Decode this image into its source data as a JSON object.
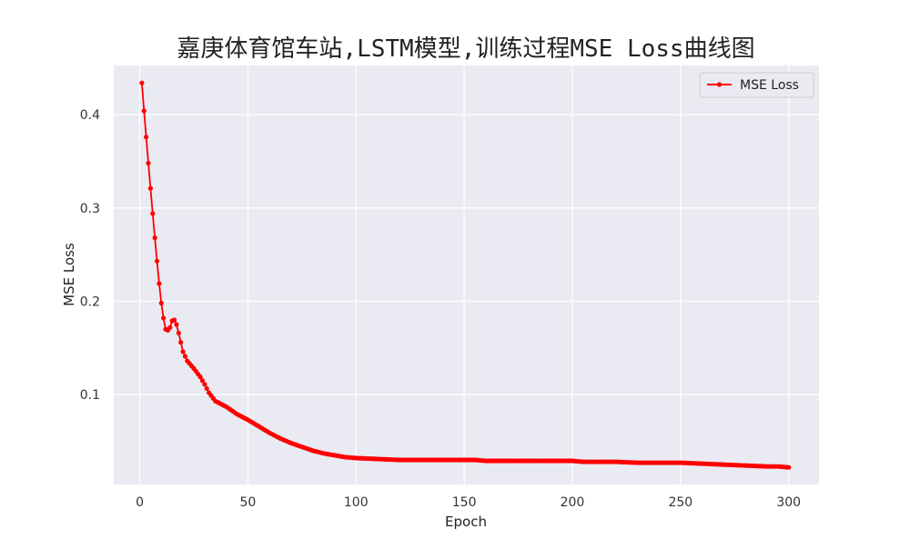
{
  "chart_data": {
    "type": "line",
    "title": "嘉庚体育馆车站,LSTM模型,训练过程MSE Loss曲线图",
    "xlabel": "Epoch",
    "ylabel": "MSE Loss",
    "xlim": [
      -12,
      314
    ],
    "ylim": [
      0.0037,
      0.4527
    ],
    "xticks": [
      0,
      50,
      100,
      150,
      200,
      250,
      300
    ],
    "yticks": [
      0.1,
      0.2,
      0.3,
      0.4
    ],
    "ytick_labels": [
      "0.1",
      "0.2",
      "0.3",
      "0.4"
    ],
    "grid": true,
    "legend_position": "top-right",
    "series": [
      {
        "name": "MSE Loss",
        "color": "#ff0000",
        "marker": "circle",
        "anchors": [
          [
            1,
            0.434
          ],
          [
            2,
            0.404
          ],
          [
            3,
            0.376
          ],
          [
            4,
            0.348
          ],
          [
            5,
            0.321
          ],
          [
            6,
            0.294
          ],
          [
            7,
            0.268
          ],
          [
            8,
            0.243
          ],
          [
            9,
            0.219
          ],
          [
            10,
            0.198
          ],
          [
            11,
            0.182
          ],
          [
            12,
            0.17
          ],
          [
            13,
            0.169
          ],
          [
            14,
            0.172
          ],
          [
            15,
            0.179
          ],
          [
            16,
            0.18
          ],
          [
            17,
            0.175
          ],
          [
            18,
            0.166
          ],
          [
            19,
            0.156
          ],
          [
            20,
            0.146
          ],
          [
            22,
            0.136
          ],
          [
            25,
            0.128
          ],
          [
            28,
            0.119
          ],
          [
            30,
            0.111
          ],
          [
            32,
            0.102
          ],
          [
            35,
            0.093
          ],
          [
            40,
            0.087
          ],
          [
            45,
            0.079
          ],
          [
            50,
            0.073
          ],
          [
            55,
            0.066
          ],
          [
            60,
            0.059
          ],
          [
            65,
            0.053
          ],
          [
            70,
            0.048
          ],
          [
            75,
            0.044
          ],
          [
            80,
            0.04
          ],
          [
            85,
            0.037
          ],
          [
            90,
            0.035
          ],
          [
            95,
            0.033
          ],
          [
            100,
            0.032
          ],
          [
            110,
            0.031
          ],
          [
            120,
            0.03
          ],
          [
            140,
            0.03
          ],
          [
            155,
            0.03
          ],
          [
            160,
            0.029
          ],
          [
            180,
            0.029
          ],
          [
            200,
            0.029
          ],
          [
            205,
            0.028
          ],
          [
            220,
            0.028
          ],
          [
            230,
            0.027
          ],
          [
            250,
            0.027
          ],
          [
            260,
            0.026
          ],
          [
            270,
            0.025
          ],
          [
            280,
            0.024
          ],
          [
            290,
            0.023
          ],
          [
            295,
            0.023
          ],
          [
            300,
            0.022
          ]
        ]
      }
    ]
  }
}
